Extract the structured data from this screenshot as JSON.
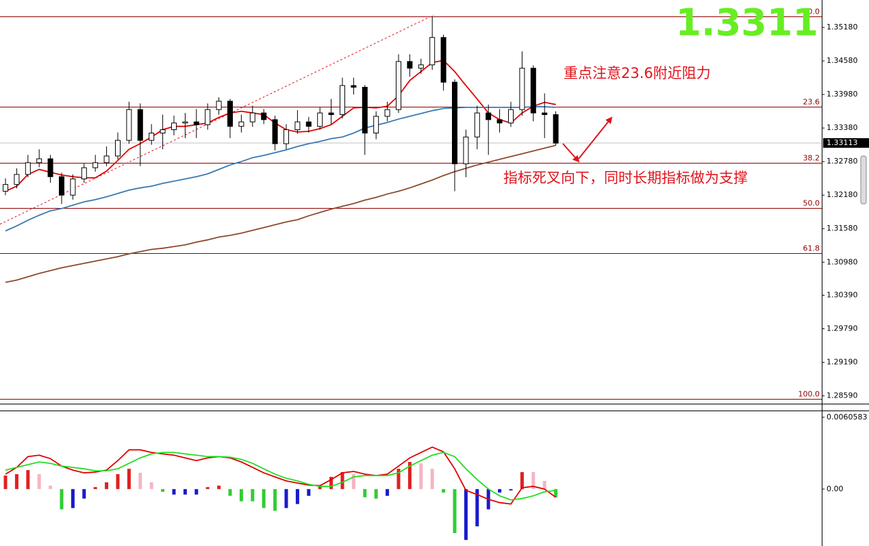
{
  "chart_data": [
    {
      "type": "candlestick",
      "price_display": "1.3311",
      "annotations": [
        "重点注意23.6附近阻力",
        "指标死叉向下，同时长期指标做为支撑"
      ],
      "ylim": [
        1.2845,
        1.3567
      ],
      "yticks": [
        {
          "value": 1.3518,
          "label": "1.35180"
        },
        {
          "value": 1.3458,
          "label": "1.34580"
        },
        {
          "value": 1.3398,
          "label": "1.33980"
        },
        {
          "value": 1.3338,
          "label": "1.33380"
        },
        {
          "value": 1.3278,
          "label": "1.32780"
        },
        {
          "value": 1.3218,
          "label": "1.32180"
        },
        {
          "value": 1.3158,
          "label": "1.31580"
        },
        {
          "value": 1.3098,
          "label": "1.30980"
        },
        {
          "value": 1.3039,
          "label": "1.30390"
        },
        {
          "value": 1.2979,
          "label": "1.29790"
        },
        {
          "value": 1.2919,
          "label": "1.29190"
        },
        {
          "value": 1.2859,
          "label": "1.28590"
        }
      ],
      "last_price": {
        "value": 1.33113,
        "label": "1.33113"
      },
      "fib_levels": [
        {
          "label": "0.0",
          "price": 1.3538
        },
        {
          "label": "23.6",
          "price": 1.3376
        },
        {
          "label": "38.2",
          "price": 1.3276
        },
        {
          "label": "50.0",
          "price": 1.3195
        },
        {
          "label": "61.8",
          "price": 1.3114
        },
        {
          "label": "100.0",
          "price": 1.2854
        }
      ],
      "fib_color": "#8b0000",
      "trend_line": {
        "start": 1.3166,
        "end": 1.354,
        "color": "#e0141c"
      },
      "open": [
        1.3225,
        1.3237,
        1.3255,
        1.3276,
        1.3283,
        1.3251,
        1.3218,
        1.3247,
        1.3267,
        1.3276,
        1.3288,
        1.3316,
        1.3371,
        1.3316,
        1.3329,
        1.3335,
        1.3347,
        1.3349,
        1.3344,
        1.3371,
        1.3386,
        1.3341,
        1.3349,
        1.3365,
        1.3353,
        1.331,
        1.3335,
        1.3349,
        1.3341,
        1.3365,
        1.3362,
        1.3414,
        1.3411,
        1.3329,
        1.3359,
        1.3371,
        1.3457,
        1.3445,
        1.3451,
        1.35,
        1.342,
        1.3274,
        1.3322,
        1.3365,
        1.3353,
        1.3347,
        1.3371,
        1.3445,
        1.3365,
        1.3362
      ],
      "high": [
        1.3248,
        1.3266,
        1.329,
        1.33,
        1.329,
        1.3258,
        1.3255,
        1.3275,
        1.329,
        1.3305,
        1.333,
        1.3385,
        1.3382,
        1.3345,
        1.3362,
        1.336,
        1.3365,
        1.3372,
        1.3382,
        1.3393,
        1.339,
        1.3362,
        1.3378,
        1.3372,
        1.336,
        1.3345,
        1.337,
        1.3358,
        1.3375,
        1.339,
        1.3428,
        1.3428,
        1.3415,
        1.3368,
        1.3385,
        1.347,
        1.347,
        1.3462,
        1.3538,
        1.3505,
        1.3425,
        1.3335,
        1.3378,
        1.338,
        1.3372,
        1.3385,
        1.3475,
        1.345,
        1.34,
        1.3368
      ],
      "low": [
        1.3218,
        1.323,
        1.325,
        1.3268,
        1.324,
        1.3202,
        1.321,
        1.324,
        1.326,
        1.327,
        1.3282,
        1.331,
        1.327,
        1.3308,
        1.33,
        1.3325,
        1.332,
        1.332,
        1.3335,
        1.3362,
        1.332,
        1.333,
        1.334,
        1.3345,
        1.3298,
        1.33,
        1.3328,
        1.333,
        1.3335,
        1.3345,
        1.3355,
        1.3398,
        1.329,
        1.3318,
        1.335,
        1.3365,
        1.343,
        1.3435,
        1.3442,
        1.3405,
        1.3225,
        1.325,
        1.33,
        1.329,
        1.333,
        1.334,
        1.336,
        1.335,
        1.332,
        1.3307
      ],
      "close": [
        1.3237,
        1.3255,
        1.3276,
        1.3283,
        1.3251,
        1.3218,
        1.3247,
        1.3267,
        1.3276,
        1.3288,
        1.3316,
        1.3371,
        1.3316,
        1.3329,
        1.3335,
        1.3347,
        1.3349,
        1.3344,
        1.3371,
        1.3386,
        1.3341,
        1.3349,
        1.3365,
        1.3353,
        1.331,
        1.3335,
        1.3349,
        1.3341,
        1.3365,
        1.3362,
        1.3414,
        1.3411,
        1.3329,
        1.3359,
        1.3371,
        1.3457,
        1.3445,
        1.3451,
        1.35,
        1.342,
        1.3274,
        1.3322,
        1.3365,
        1.3353,
        1.3347,
        1.3371,
        1.3445,
        1.3365,
        1.3362,
        1.3311
      ],
      "moving_averages": [
        {
          "color": "#e00000",
          "values": [
            1.3225,
            1.3234,
            1.3255,
            1.3264,
            1.3259,
            1.3254,
            1.3251,
            1.3249,
            1.3249,
            1.3261,
            1.328,
            1.33,
            1.331,
            1.3322,
            1.3335,
            1.3341,
            1.3341,
            1.3344,
            1.3347,
            1.3357,
            1.3365,
            1.3368,
            1.3365,
            1.3362,
            1.3347,
            1.3335,
            1.3331,
            1.3332,
            1.3337,
            1.3344,
            1.3359,
            1.3374,
            1.3375,
            1.3374,
            1.3377,
            1.3396,
            1.3423,
            1.3439,
            1.3455,
            1.3459,
            1.3439,
            1.3414,
            1.339,
            1.3365,
            1.3353,
            1.3347,
            1.3365,
            1.3377,
            1.3384,
            1.338
          ]
        },
        {
          "color": "#3a78b0",
          "values": [
            1.3154,
            1.3163,
            1.3173,
            1.3182,
            1.319,
            1.3194,
            1.32,
            1.3206,
            1.321,
            1.3215,
            1.3221,
            1.3227,
            1.3231,
            1.3234,
            1.3239,
            1.3243,
            1.3247,
            1.3251,
            1.3256,
            1.3264,
            1.3272,
            1.3278,
            1.3285,
            1.3289,
            1.3294,
            1.3299,
            1.3305,
            1.331,
            1.3314,
            1.3319,
            1.3322,
            1.3329,
            1.3338,
            1.3343,
            1.3348,
            1.3354,
            1.3359,
            1.3364,
            1.3369,
            1.3373,
            1.3374,
            1.3375,
            1.3375,
            1.3375,
            1.3375,
            1.3375,
            1.3375,
            1.3376,
            1.3376,
            1.3375
          ]
        },
        {
          "color": "#8b4a2b",
          "values": [
            1.3062,
            1.3066,
            1.3072,
            1.3078,
            1.3083,
            1.3088,
            1.3092,
            1.3096,
            1.31,
            1.3104,
            1.3108,
            1.3113,
            1.3117,
            1.3121,
            1.3123,
            1.3126,
            1.3129,
            1.3134,
            1.3138,
            1.3143,
            1.3146,
            1.315,
            1.3155,
            1.316,
            1.3165,
            1.317,
            1.3174,
            1.3181,
            1.3187,
            1.3193,
            1.3198,
            1.3203,
            1.3209,
            1.3214,
            1.322,
            1.3225,
            1.3231,
            1.3238,
            1.3245,
            1.3253,
            1.326,
            1.3266,
            1.3272,
            1.3277,
            1.3282,
            1.3287,
            1.3292,
            1.3297,
            1.3302,
            1.3307
          ]
        }
      ]
    },
    {
      "type": "macd",
      "ylim": [
        -0.0048,
        0.00651
      ],
      "yticks": [
        {
          "value": 0.0060583,
          "label": "0.0060583"
        },
        {
          "value": 0,
          "label": "0.00"
        }
      ],
      "histogram": [
        0.00114,
        0.00126,
        0.0016,
        0.00126,
        0.00029,
        -0.00171,
        -0.0016,
        -0.0008,
        0.00017,
        0.00057,
        0.00126,
        0.00171,
        0.00137,
        0.00057,
        -0.00023,
        -0.00046,
        -0.00046,
        -0.00046,
        0.00017,
        0.00029,
        -0.00057,
        -0.00103,
        -0.00103,
        -0.0016,
        -0.00183,
        -0.0016,
        -0.00126,
        -0.00057,
        0.00029,
        0.00103,
        0.00143,
        0.00126,
        -0.00069,
        -0.0008,
        -0.00057,
        0.00171,
        0.00229,
        0.00217,
        0.00171,
        -0.00029,
        -0.00371,
        -0.00429,
        -0.00314,
        -0.00171,
        -0.00029,
        -0.00011,
        0.00143,
        0.00143,
        0.00069,
        -0.00069
      ],
      "histogram_colors": [
        "#e02020",
        "#e02020",
        "#e02020",
        "#f4b6c2",
        "#f4b6c2",
        "#33cc33",
        "#1a1acc",
        "#1a1acc",
        "#e02020",
        "#e02020",
        "#e02020",
        "#e02020",
        "#f4b6c2",
        "#f4b6c2",
        "#33cc33",
        "#1a1acc",
        "#1a1acc",
        "#1a1acc",
        "#e02020",
        "#e02020",
        "#33cc33",
        "#33cc33",
        "#33cc33",
        "#33cc33",
        "#33cc33",
        "#1a1acc",
        "#1a1acc",
        "#1a1acc",
        "#e02020",
        "#e02020",
        "#e02020",
        "#f4b6c2",
        "#33cc33",
        "#33cc33",
        "#1a1acc",
        "#e02020",
        "#e02020",
        "#f4b6c2",
        "#f4b6c2",
        "#33cc33",
        "#33cc33",
        "#1a1acc",
        "#1a1acc",
        "#1a1acc",
        "#1a1acc",
        "#1a1acc",
        "#e02020",
        "#f4b6c2",
        "#f4b6c2",
        "#33cc33"
      ],
      "series": [
        {
          "color": "#e00000",
          "values": [
            0.00126,
            0.00183,
            0.00274,
            0.00286,
            0.00257,
            0.00194,
            0.0016,
            0.00137,
            0.00143,
            0.0016,
            0.0024,
            0.00331,
            0.00331,
            0.00309,
            0.00297,
            0.00286,
            0.00263,
            0.0024,
            0.00263,
            0.00274,
            0.00263,
            0.00229,
            0.00183,
            0.00137,
            0.00103,
            0.00069,
            0.00051,
            0.00034,
            0.00029,
            0.0008,
            0.00137,
            0.00149,
            0.00126,
            0.00114,
            0.00126,
            0.00194,
            0.00263,
            0.00309,
            0.00354,
            0.00314,
            0.00171,
            -0.00011,
            -0.00046,
            -0.00086,
            -0.00114,
            -0.00126,
            0.00011,
            0.00023,
            0,
            -0.00069
          ]
        },
        {
          "color": "#22dd22",
          "values": [
            0.0016,
            0.00183,
            0.00206,
            0.00229,
            0.00217,
            0.00194,
            0.00183,
            0.00171,
            0.00154,
            0.00154,
            0.00171,
            0.00217,
            0.00263,
            0.00297,
            0.00309,
            0.00309,
            0.00297,
            0.00286,
            0.00274,
            0.00274,
            0.00269,
            0.00251,
            0.00217,
            0.00171,
            0.00126,
            0.00091,
            0.00069,
            0.0004,
            0.00023,
            0.00023,
            0.00057,
            0.00103,
            0.00114,
            0.00114,
            0.00114,
            0.00137,
            0.00194,
            0.0024,
            0.00286,
            0.00309,
            0.00274,
            0.00171,
            0.0008,
            0,
            -0.00057,
            -0.00091,
            -0.0008,
            -0.00057,
            -0.00023,
            -0.00011
          ]
        }
      ]
    }
  ]
}
